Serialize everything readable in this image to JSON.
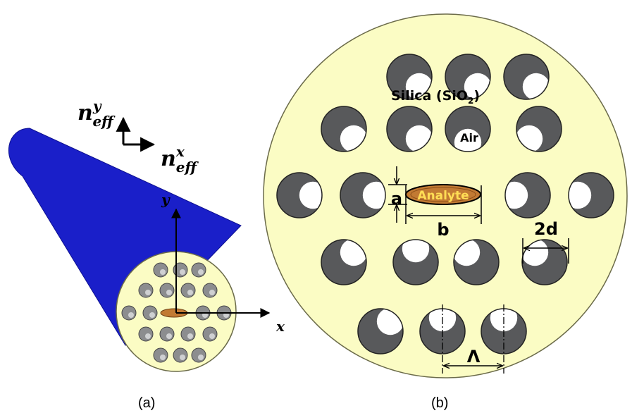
{
  "colors": {
    "cladding": "#fbfcc4",
    "fiber_body": "#1a1fc9",
    "hole_fill": "#58595b",
    "air_fill": "#ffffff",
    "analyte_fill": "#c27a33",
    "analyte_text": "#ffdd55",
    "line": "#000000"
  },
  "panel_a": {
    "caption": "(a)",
    "n_eff_y": {
      "base": "n",
      "sup": "y",
      "sub": "eff"
    },
    "n_eff_x": {
      "base": "n",
      "sup": "x",
      "sub": "eff"
    },
    "axis_y": "y",
    "axis_x": "x"
  },
  "panel_b": {
    "caption": "(b)",
    "silica_label": {
      "text": "Silica (SiO",
      "sub": "2",
      "close": ")"
    },
    "air_label": "Air",
    "analyte_label": "Analyte",
    "dim_a": "a",
    "dim_b": "b",
    "dim_2d": "2d",
    "dim_lambda": "Λ"
  },
  "icons": [
    "polarization-arrow-icon",
    "air-hole-icon",
    "analyte-channel-icon"
  ]
}
